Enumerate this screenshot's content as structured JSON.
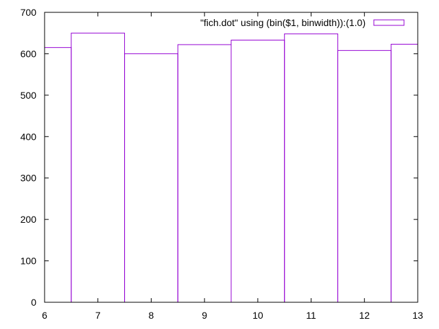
{
  "chart_data": {
    "type": "bar",
    "style": "histogram-steps",
    "x": [
      6,
      7,
      8,
      9,
      10,
      11,
      12,
      13
    ],
    "values": [
      615,
      650,
      600,
      622,
      633,
      648,
      608,
      623
    ],
    "series": [
      {
        "name": "\"fich.dot\" using (bin($1, binwidth)):(1.0)",
        "values": [
          615,
          650,
          600,
          622,
          633,
          648,
          608,
          623
        ]
      }
    ],
    "bin_width": 1,
    "xlim": [
      6,
      13
    ],
    "ylim": [
      0,
      700
    ],
    "x_ticks": [
      "6",
      "7",
      "8",
      "9",
      "10",
      "11",
      "12",
      "13"
    ],
    "y_ticks": [
      "0",
      "100",
      "200",
      "300",
      "400",
      "500",
      "600",
      "700"
    ],
    "grid": false,
    "legend_position": "top-right",
    "series_color": "#9400d3",
    "axis_color": "#000000"
  }
}
